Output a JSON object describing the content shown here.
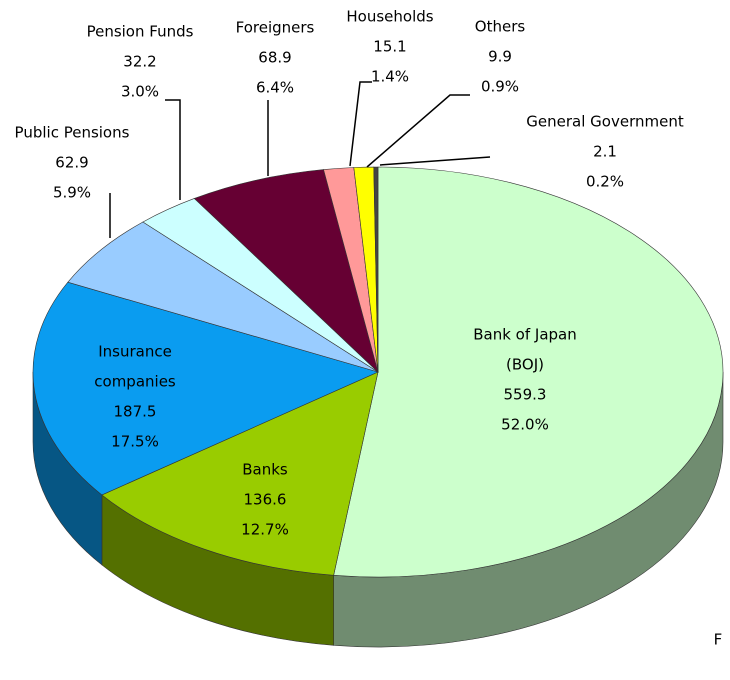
{
  "chart_data": {
    "type": "pie3d",
    "categories": [
      [
        "Bank of Japan",
        "(BOJ)"
      ],
      [
        "Banks"
      ],
      [
        "Insurance",
        "companies"
      ],
      [
        "Public Pensions"
      ],
      [
        "Pension Funds"
      ],
      [
        "Foreigners"
      ],
      [
        "Households"
      ],
      [
        "Others"
      ],
      [
        "General Government"
      ]
    ],
    "values": [
      559.3,
      136.6,
      187.5,
      62.9,
      32.2,
      68.9,
      15.1,
      9.9,
      2.1
    ],
    "percent_labels": [
      "52.0%",
      "12.7%",
      "17.5%",
      "5.9%",
      "3.0%",
      "6.4%",
      "1.4%",
      "0.9%",
      "0.2%"
    ],
    "colors": [
      "#ccffcc",
      "#99cc00",
      "#0a9cf0",
      "#99ccff",
      "#ccffff",
      "#660033",
      "#ff9999",
      "#ffff00",
      "#444444"
    ],
    "annotation": "F"
  }
}
